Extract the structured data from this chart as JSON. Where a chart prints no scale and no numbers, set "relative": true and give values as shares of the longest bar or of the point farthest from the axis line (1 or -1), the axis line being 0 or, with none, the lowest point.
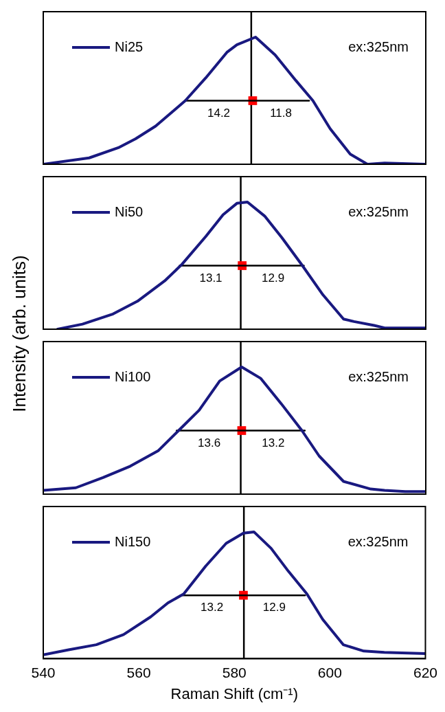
{
  "chart_data": [
    {
      "type": "line",
      "relative": true,
      "ylabel": "Intensity (arb. units)",
      "xlim": [
        540,
        620
      ],
      "xticks": [
        540,
        560,
        580,
        600,
        620
      ],
      "tick_labels": false,
      "legend": "top left",
      "marker": "none",
      "grid": false,
      "series": [
        {
          "name": "Ni25",
          "color": "#191980",
          "x": [
            540,
            549.6,
            555.7,
            559.3,
            563.5,
            569.7,
            574,
            578.4,
            580.5,
            584.4,
            588.5,
            592.8,
            596.4,
            600,
            604.2,
            607.8,
            611.4,
            620
          ],
          "values": [
            0,
            0.05,
            0.13,
            0.2,
            0.3,
            0.5,
            0.68,
            0.88,
            0.94,
            1,
            0.86,
            0.66,
            0.5,
            0.28,
            0.08,
            0,
            0.01,
            0
          ]
        },
        {
          "type": "line",
          "color": "#000000",
          "x": [
            569.6,
            595.6
          ],
          "values": [
            0.5,
            0.5
          ]
        },
        {
          "type": "scatter",
          "color": "#ff0000",
          "marker": "square",
          "x": [
            583.8
          ],
          "values": [
            0.5
          ]
        }
      ],
      "ref_lines": [
        {
          "axis": "x",
          "value": 583.5,
          "color": "#000000"
        }
      ],
      "annotations": [
        "ex:325nm",
        {
          "text": "14.2",
          "x": 576.7,
          "y": 0.5
        },
        {
          "text": "11.8",
          "x": 589.7,
          "y": 0.5
        }
      ]
    },
    {
      "type": "line",
      "relative": true,
      "xlim": [
        540,
        620
      ],
      "xticks": [
        540,
        560,
        580,
        600,
        620
      ],
      "tick_labels": false,
      "legend": "top left",
      "marker": "none",
      "grid": false,
      "series": [
        {
          "name": "Ni50",
          "color": "#191980",
          "x": [
            543,
            548.2,
            554.6,
            559.7,
            565.4,
            569,
            574,
            577.6,
            580.5,
            582.7,
            586.3,
            589.9,
            594.2,
            598.5,
            602.8,
            605,
            609.2,
            611.4,
            620
          ],
          "values": [
            0,
            0.04,
            0.12,
            0.22,
            0.38,
            0.51,
            0.73,
            0.9,
            0.99,
            1,
            0.89,
            0.72,
            0.5,
            0.27,
            0.08,
            0.06,
            0.03,
            0.01,
            0.01
          ]
        },
        {
          "type": "line",
          "color": "#000000",
          "x": [
            568.5,
            594.5
          ],
          "values": [
            0.5,
            0.5
          ]
        },
        {
          "type": "scatter",
          "color": "#ff0000",
          "marker": "square",
          "x": [
            581.6
          ],
          "values": [
            0.5
          ]
        }
      ],
      "ref_lines": [
        {
          "axis": "x",
          "value": 581.3,
          "color": "#000000"
        }
      ],
      "annotations": [
        "ex:325nm",
        {
          "text": "13.1",
          "x": 575.05,
          "y": 0.5
        },
        {
          "text": "12.9",
          "x": 588.05,
          "y": 0.5
        }
      ]
    },
    {
      "type": "line",
      "relative": true,
      "xlim": [
        540,
        620
      ],
      "xticks": [
        540,
        560,
        580,
        600,
        620
      ],
      "tick_labels": false,
      "legend": "top left",
      "marker": "none",
      "grid": false,
      "series": [
        {
          "name": "Ni100",
          "color": "#191980",
          "x": [
            540,
            546.8,
            552.5,
            558.2,
            564,
            568.3,
            572.6,
            576.9,
            581.5,
            585.5,
            589.8,
            594.1,
            597.7,
            602.8,
            608.5,
            611.4,
            615.7,
            620
          ],
          "values": [
            0.03,
            0.05,
            0.13,
            0.22,
            0.34,
            0.5,
            0.66,
            0.89,
            1,
            0.91,
            0.71,
            0.5,
            0.3,
            0.1,
            0.04,
            0.03,
            0.02,
            0.02
          ]
        },
        {
          "type": "line",
          "color": "#000000",
          "x": [
            567.9,
            594.7
          ],
          "values": [
            0.5,
            0.5
          ]
        },
        {
          "type": "scatter",
          "color": "#ff0000",
          "marker": "square",
          "x": [
            581.5
          ],
          "values": [
            0.5
          ]
        }
      ],
      "ref_lines": [
        {
          "axis": "x",
          "value": 581.3,
          "color": "#000000"
        }
      ],
      "annotations": [
        "ex:325nm",
        {
          "text": "13.6",
          "x": 574.7,
          "y": 0.5
        },
        {
          "text": "13.2",
          "x": 588.1,
          "y": 0.5
        }
      ]
    },
    {
      "type": "line",
      "relative": true,
      "xlabel": "Raman Shift (cm⁻¹)",
      "xlim": [
        540,
        620
      ],
      "xticks": [
        540,
        560,
        580,
        600,
        620
      ],
      "tick_labels": "x",
      "legend": "top left",
      "marker": "none",
      "grid": false,
      "series": [
        {
          "name": "Ni150",
          "color": "#191980",
          "x": [
            540,
            545.3,
            551.1,
            556.8,
            562.5,
            566.1,
            569.4,
            574,
            578.3,
            581.9,
            584.1,
            587.7,
            591.3,
            595.2,
            598.5,
            602.8,
            607.1,
            611.4,
            620
          ],
          "values": [
            0.03,
            0.07,
            0.11,
            0.19,
            0.33,
            0.44,
            0.51,
            0.73,
            0.91,
            0.99,
            1,
            0.87,
            0.69,
            0.51,
            0.31,
            0.11,
            0.06,
            0.05,
            0.04
          ]
        },
        {
          "type": "line",
          "color": "#000000",
          "x": [
            568.7,
            594.8
          ],
          "values": [
            0.5,
            0.5
          ]
        },
        {
          "type": "scatter",
          "color": "#ff0000",
          "marker": "square",
          "x": [
            581.9
          ],
          "values": [
            0.5
          ]
        }
      ],
      "ref_lines": [
        {
          "axis": "x",
          "value": 582,
          "color": "#000000"
        }
      ],
      "annotations": [
        "ex:325nm",
        {
          "text": "13.2",
          "x": 575.3,
          "y": 0.5
        },
        {
          "text": "12.9",
          "x": 588.35,
          "y": 0.5
        }
      ]
    }
  ]
}
